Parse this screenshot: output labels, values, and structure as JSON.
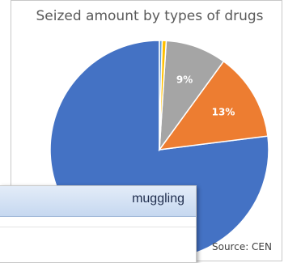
{
  "chart_data": {
    "type": "pie",
    "title": "Seized amount by types of drugs",
    "source": "Source: CEN",
    "slices": [
      {
        "label": "77%",
        "value": 77,
        "color": "#4472c4"
      },
      {
        "label": "13%",
        "value": 13,
        "color": "#ed7d31"
      },
      {
        "label": "9%",
        "value": 9,
        "color": "#a5a5a5"
      },
      {
        "label": "",
        "value": 0.6,
        "color": "#ffc000"
      },
      {
        "label": "",
        "value": 0.4,
        "color": "#5b9bd5"
      }
    ]
  },
  "overlay": {
    "header_text": "muggling"
  }
}
